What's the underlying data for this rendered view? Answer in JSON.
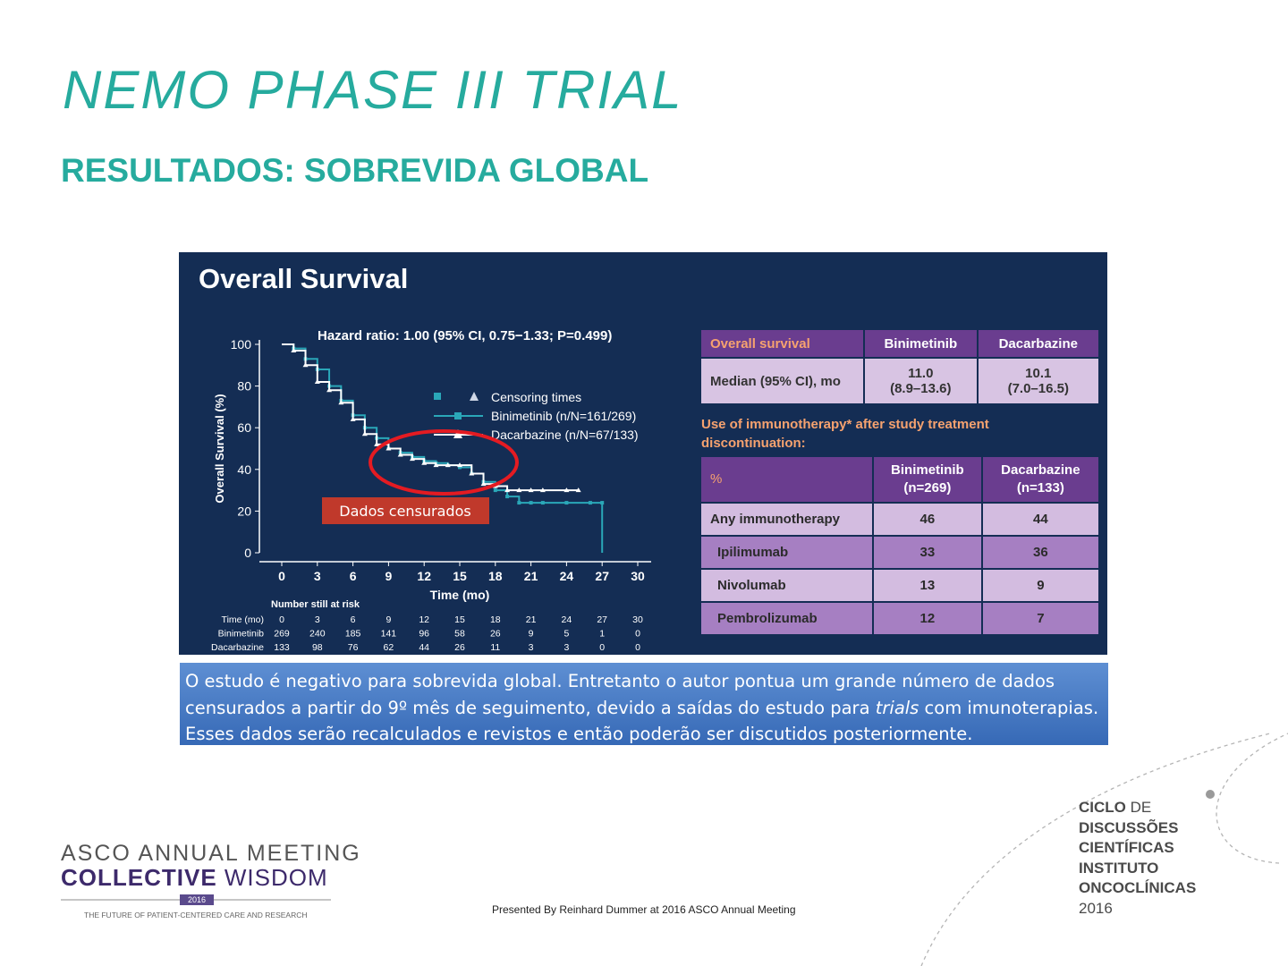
{
  "title": "NEMO PHASE III TRIAL",
  "subtitle": "RESULTADOS: SOBREVIDA GLOBAL",
  "figure": {
    "panel_title": "Overall Survival",
    "hazard_ratio": "Hazard ratio: 1.00 (95% CI, 0.75−1.33; P=0.499)",
    "dados_label": "Dados censurados",
    "os_table": {
      "headers": [
        "Overall survival",
        "Binimetinib",
        "Dacarbazine"
      ],
      "row_label": "Median (95% CI), mo",
      "bini": [
        "11.0",
        "(8.9–13.6)"
      ],
      "dacar": [
        "10.1",
        "(7.0–16.5)"
      ]
    },
    "use_note": "Use of immunotherapy* after study treatment discontinuation:",
    "imm_table": {
      "col0": "%",
      "col1": [
        "Binimetinib",
        "(n=269)"
      ],
      "col2": [
        "Dacarbazine",
        "(n=133)"
      ],
      "rows": [
        {
          "label": "Any immunotherapy",
          "bini": "46",
          "dacar": "44"
        },
        {
          "label": "Ipilimumab",
          "bini": "33",
          "dacar": "36"
        },
        {
          "label": "Nivolumab",
          "bini": "13",
          "dacar": "9"
        },
        {
          "label": "Pembrolizumab",
          "bini": "12",
          "dacar": "7"
        }
      ]
    }
  },
  "chart_data": {
    "type": "line",
    "xlabel": "Time (mo)",
    "ylabel": "Overall Survival (%)",
    "xlim": [
      0,
      30
    ],
    "ylim": [
      0,
      100
    ],
    "xticks": [
      "0",
      "3",
      "6",
      "9",
      "12",
      "15",
      "18",
      "21",
      "24",
      "27",
      "30"
    ],
    "yticks": [
      "0",
      "20",
      "40",
      "60",
      "80",
      "100"
    ],
    "legend": [
      "Censoring times",
      "Binimetinib (n/N=161/269)",
      "Dacarbazine (n/N=67/133)"
    ],
    "series": [
      {
        "name": "Binimetinib (n/N=161/269)",
        "color": "#2aa7b8",
        "x": [
          0,
          1,
          2,
          3,
          4,
          5,
          6,
          7,
          8,
          9,
          10,
          11,
          12,
          13,
          14,
          15,
          16,
          17,
          18,
          19,
          20,
          21,
          22,
          24,
          26,
          27,
          27
        ],
        "y": [
          100,
          98,
          93,
          88,
          80,
          73,
          66,
          60,
          55,
          50,
          48,
          46,
          44,
          43,
          42,
          41,
          38,
          34,
          30,
          27,
          24,
          24,
          24,
          24,
          24,
          24,
          0
        ]
      },
      {
        "name": "Dacarbazine (n/N=67/133)",
        "color": "#ffffff",
        "x": [
          0,
          1,
          2,
          3,
          4,
          5,
          6,
          7,
          8,
          9,
          10,
          11,
          12,
          13,
          14,
          15,
          16,
          17,
          18,
          19,
          20,
          21,
          22,
          24,
          25
        ],
        "y": [
          100,
          97,
          90,
          82,
          78,
          72,
          64,
          57,
          52,
          50,
          47,
          45,
          43,
          42,
          42,
          42,
          38,
          33,
          32,
          30,
          30,
          30,
          30,
          30,
          30
        ]
      }
    ],
    "risk_table": {
      "title": "Number still at risk",
      "rows": [
        {
          "label": "Time (mo)",
          "values": [
            "0",
            "3",
            "6",
            "9",
            "12",
            "15",
            "18",
            "21",
            "24",
            "27",
            "30"
          ]
        },
        {
          "label": "Binimetinib",
          "values": [
            "269",
            "240",
            "185",
            "141",
            "96",
            "58",
            "26",
            "9",
            "5",
            "1",
            "0"
          ]
        },
        {
          "label": "Dacarbazine",
          "values": [
            "133",
            "98",
            "76",
            "62",
            "44",
            "26",
            "11",
            "3",
            "3",
            "0",
            "0"
          ]
        }
      ]
    }
  },
  "caption": {
    "part1": "O estudo é negativo para sobrevida global. Entretanto o autor pontua um grande número de dados censurados a partir do 9º mês de seguimento, devido a saídas do estudo para ",
    "italic": "trials",
    "part2": " com imunoterapias. Esses dados serão recalculados e revistos e então poderão ser discutidos  posteriormente."
  },
  "footer": {
    "asco_line1": "ASCO ANNUAL MEETING",
    "asco_line2_bold": "COLLECTIVE",
    "asco_line2_light": " WISDOM",
    "asco_year": "2016",
    "asco_tagline": "THE FUTURE OF PATIENT-CENTERED CARE AND RESEARCH",
    "presented": "Presented By Reinhard Dummer at 2016 ASCO Annual Meeting",
    "ciclo": {
      "l1_bold": "CICLO",
      "l1_light": " DE",
      "l2": "DISCUSSÕES",
      "l3": "CIENTÍFICAS",
      "l4": "INSTITUTO",
      "l5": "ONCOCLÍNICAS",
      "l6": "2016"
    }
  }
}
